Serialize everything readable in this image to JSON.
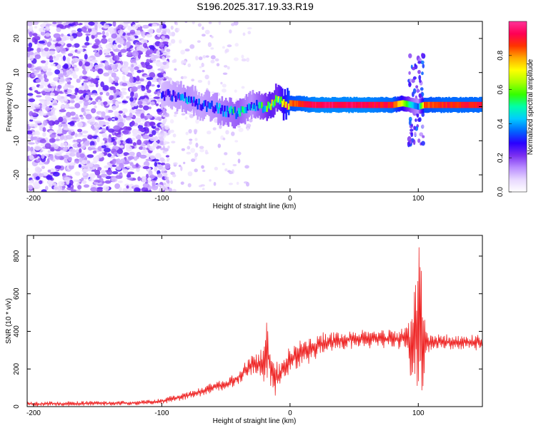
{
  "title": "S196.2025.317.19.33.R19",
  "colors": {
    "snr_line": "#ee2222",
    "scatter_purple": "#7a2ff0",
    "ridge_red": "#ee1a1a"
  },
  "chart_data": [
    {
      "type": "heatmap",
      "id": "spectrogram",
      "xlabel": "Height of straight line (km)",
      "ylabel": "Frequency (Hz)",
      "xlim": [
        -205,
        150
      ],
      "ylim": [
        -25,
        25
      ],
      "xticks": [
        -200,
        -100,
        0,
        100
      ],
      "yticks": [
        -20,
        -10,
        0,
        10,
        20
      ],
      "noise_region": {
        "x_range": [
          -205,
          -95
        ],
        "amplitude": [
          0.05,
          0.3
        ]
      },
      "ridge": {
        "x": [
          -100,
          -90,
          -80,
          -70,
          -60,
          -50,
          -40,
          -30,
          -20,
          -15,
          -10,
          -5,
          0,
          20,
          40,
          60,
          80,
          88,
          95,
          100,
          105,
          120,
          150
        ],
        "freq_hz": [
          3.5,
          3.0,
          2.5,
          0.5,
          0.0,
          -1.5,
          -2.0,
          0.5,
          -0.5,
          0.0,
          2.5,
          0.5,
          1.0,
          0.5,
          0.5,
          0.5,
          0.5,
          1.0,
          0.5,
          0.0,
          0.5,
          0.5,
          0.5
        ],
        "amplitude": [
          0.25,
          0.3,
          0.35,
          0.3,
          0.35,
          0.4,
          0.45,
          0.35,
          0.5,
          0.6,
          0.55,
          0.7,
          0.85,
          0.95,
          0.95,
          0.95,
          0.9,
          0.7,
          0.45,
          0.35,
          0.85,
          0.9,
          0.9
        ]
      },
      "spike_near_x": 100,
      "colorbar": {
        "label": "Normalized spectral amplitude",
        "range": [
          0.0,
          1.0
        ],
        "ticks": [
          "0.0",
          "0.2",
          "0.4",
          "0.6",
          "0.8"
        ],
        "tick_values": [
          0.0,
          0.2,
          0.4,
          0.6,
          0.8
        ],
        "colormap": [
          "#ffffff",
          "#e8d8ff",
          "#b98cff",
          "#7a2ff0",
          "#2a00ff",
          "#0066ff",
          "#00ccff",
          "#00ffaa",
          "#33ff00",
          "#aaff00",
          "#ffff00",
          "#ffaa00",
          "#ff3300",
          "#ff0055",
          "#ff3399"
        ]
      }
    },
    {
      "type": "line",
      "id": "snr",
      "xlabel": "Height of straight line (km)",
      "ylabel": "SNR (10 * v/v)",
      "xlim": [
        -205,
        150
      ],
      "ylim": [
        0,
        910
      ],
      "xticks": [
        -200,
        -100,
        0,
        100
      ],
      "yticks": [
        0,
        200,
        400,
        600,
        800
      ],
      "series": [
        {
          "name": "SNR",
          "x": [
            -205,
            -180,
            -150,
            -120,
            -100,
            -90,
            -80,
            -70,
            -60,
            -50,
            -45,
            -40,
            -35,
            -30,
            -25,
            -20,
            -18,
            -15,
            -12,
            -10,
            -8,
            -5,
            0,
            10,
            20,
            30,
            40,
            50,
            60,
            70,
            80,
            90,
            95,
            98,
            100,
            102,
            104,
            106,
            110,
            120,
            130,
            140,
            150
          ],
          "envelope_low": [
            2,
            3,
            5,
            8,
            15,
            25,
            40,
            55,
            75,
            90,
            100,
            120,
            150,
            170,
            160,
            130,
            140,
            100,
            60,
            50,
            90,
            130,
            170,
            210,
            250,
            280,
            300,
            310,
            310,
            310,
            310,
            300,
            120,
            60,
            20,
            30,
            80,
            250,
            300,
            300,
            300,
            300,
            300
          ],
          "envelope_high": [
            25,
            28,
            30,
            30,
            45,
            60,
            80,
            100,
            130,
            150,
            170,
            200,
            240,
            270,
            290,
            320,
            480,
            310,
            280,
            260,
            220,
            270,
            330,
            360,
            390,
            400,
            410,
            410,
            405,
            405,
            410,
            420,
            550,
            750,
            910,
            910,
            650,
            420,
            390,
            385,
            385,
            385,
            385
          ]
        }
      ]
    }
  ]
}
